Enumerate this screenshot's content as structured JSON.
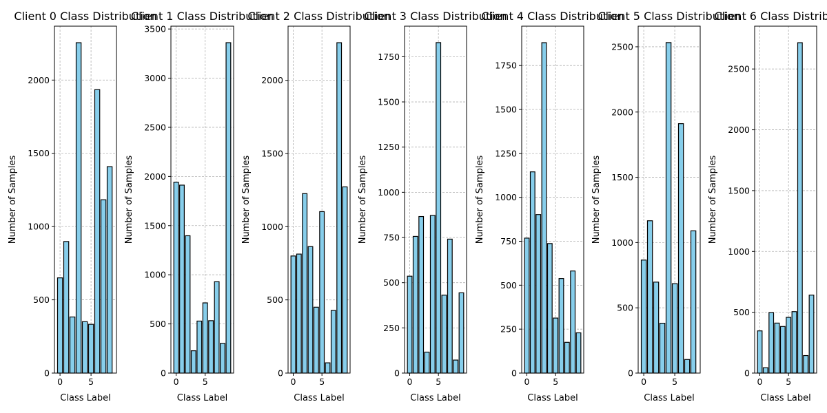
{
  "chart_data": [
    {
      "type": "bar",
      "title": "Client 0 Class Distribution",
      "xlabel": "Class Label",
      "ylabel": "Number of Samples",
      "x": [
        0,
        1,
        2,
        3,
        4,
        5,
        6,
        7,
        8
      ],
      "values": [
        650,
        898,
        383,
        2255,
        351,
        333,
        1935,
        1183,
        1409
      ],
      "xlim": [
        -0.9,
        9.1
      ],
      "ylim": [
        0,
        2368
      ],
      "xticks": [
        0,
        5
      ],
      "yticks": [
        0,
        500,
        1000,
        1500,
        2000
      ],
      "grid": true,
      "bar_color": "#87ceeb",
      "edge_color": "#000000"
    },
    {
      "type": "bar",
      "title": "Client 1 Class Distribution",
      "xlabel": "Class Label",
      "ylabel": "Number of Samples",
      "x": [
        0,
        1,
        2,
        3,
        4,
        5,
        6,
        7,
        8,
        9
      ],
      "values": [
        1942,
        1912,
        1397,
        227,
        529,
        714,
        533,
        930,
        302,
        3361
      ],
      "xlim": [
        -0.9,
        9.9
      ],
      "ylim": [
        0,
        3529
      ],
      "xticks": [
        0,
        5
      ],
      "yticks": [
        0,
        500,
        1000,
        1500,
        2000,
        2500,
        3000,
        3500
      ],
      "grid": true,
      "bar_color": "#87ceeb",
      "edge_color": "#000000"
    },
    {
      "type": "bar",
      "title": "Client 2 Class Distribution",
      "xlabel": "Class Label",
      "ylabel": "Number of Samples",
      "x": [
        0,
        1,
        2,
        3,
        4,
        5,
        6,
        7,
        8,
        9
      ],
      "values": [
        800,
        813,
        1226,
        864,
        450,
        1103,
        70,
        428,
        2257,
        1272
      ],
      "xlim": [
        -0.9,
        9.9
      ],
      "ylim": [
        0,
        2370
      ],
      "xticks": [
        0,
        5
      ],
      "yticks": [
        0,
        500,
        1000,
        1500,
        2000
      ],
      "grid": true,
      "bar_color": "#87ceeb",
      "edge_color": "#000000"
    },
    {
      "type": "bar",
      "title": "Client 3 Class Distribution",
      "xlabel": "Class Label",
      "ylabel": "Number of Samples",
      "x": [
        0,
        1,
        2,
        3,
        4,
        5,
        6,
        7,
        8,
        9
      ],
      "values": [
        536,
        756,
        866,
        116,
        872,
        1828,
        431,
        741,
        72,
        444
      ],
      "xlim": [
        -0.9,
        9.9
      ],
      "ylim": [
        0,
        1919
      ],
      "xticks": [
        0,
        5
      ],
      "yticks": [
        0,
        250,
        500,
        750,
        1000,
        1250,
        1500,
        1750
      ],
      "grid": true,
      "bar_color": "#87ceeb",
      "edge_color": "#000000"
    },
    {
      "type": "bar",
      "title": "Client 4 Class Distribution",
      "xlabel": "Class Label",
      "ylabel": "Number of Samples",
      "x": [
        0,
        1,
        2,
        3,
        4,
        5,
        6,
        7,
        8,
        9
      ],
      "values": [
        768,
        1145,
        902,
        1880,
        737,
        313,
        538,
        175,
        581,
        229
      ],
      "xlim": [
        -0.9,
        9.9
      ],
      "ylim": [
        0,
        1974
      ],
      "xticks": [
        0,
        5
      ],
      "yticks": [
        0,
        250,
        500,
        750,
        1000,
        1250,
        1500,
        1750
      ],
      "grid": true,
      "bar_color": "#87ceeb",
      "edge_color": "#000000"
    },
    {
      "type": "bar",
      "title": "Client 5 Class Distribution",
      "xlabel": "Class Label",
      "ylabel": "Number of Samples",
      "x": [
        0,
        1,
        2,
        3,
        4,
        5,
        6,
        7,
        8
      ],
      "values": [
        866,
        1167,
        697,
        382,
        2532,
        685,
        1911,
        104,
        1090
      ],
      "xlim": [
        -0.9,
        9.1
      ],
      "ylim": [
        0,
        2658
      ],
      "xticks": [
        0,
        5
      ],
      "yticks": [
        0,
        500,
        1000,
        1500,
        2000,
        2500
      ],
      "grid": true,
      "bar_color": "#87ceeb",
      "edge_color": "#000000"
    },
    {
      "type": "bar",
      "title": "Client 6 Class Distribution",
      "xlabel": "Class Label",
      "ylabel": "Number of Samples",
      "x": [
        0,
        1,
        2,
        3,
        4,
        5,
        6,
        7,
        8,
        9
      ],
      "values": [
        347,
        44,
        497,
        411,
        383,
        458,
        505,
        2716,
        144,
        641
      ],
      "xlim": [
        -0.9,
        9.9
      ],
      "ylim": [
        0,
        2852
      ],
      "xticks": [
        0,
        5
      ],
      "yticks": [
        0,
        500,
        1000,
        1500,
        2000,
        2500
      ],
      "grid": true,
      "bar_color": "#87ceeb",
      "edge_color": "#000000"
    }
  ]
}
